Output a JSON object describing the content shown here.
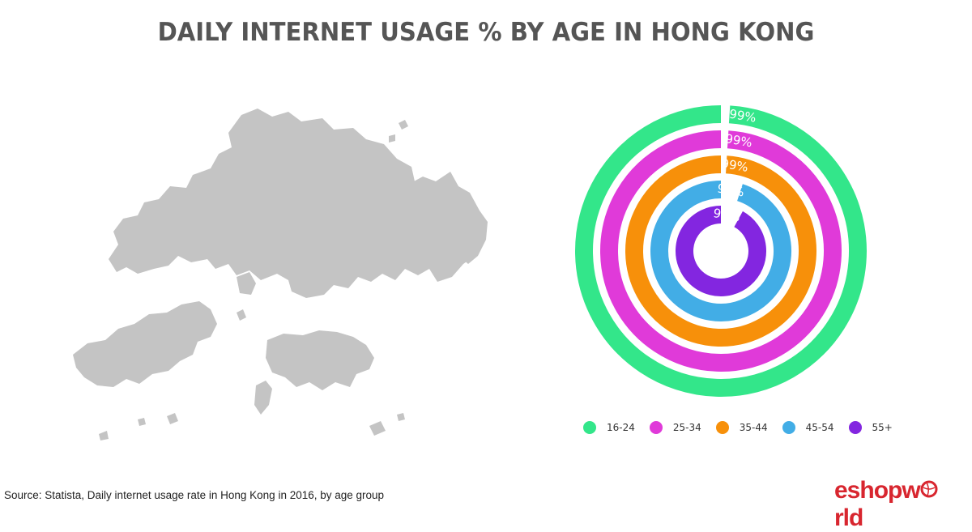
{
  "title": "DAILY INTERNET USAGE % BY AGE IN HONG KONG",
  "source": "Source: Statista, Daily internet usage rate in Hong Kong in 2016, by age group",
  "logo": {
    "text_before": "eshopw",
    "text_after": "rld"
  },
  "colors": {
    "map_fill": "#c4c4c4",
    "title": "#555555",
    "logo": "#d8262f"
  },
  "chart_data": {
    "type": "radial-bar",
    "title": "DAILY INTERNET USAGE % BY AGE IN HONG KONG",
    "max": 100,
    "series": [
      {
        "name": "16-24",
        "value": 99,
        "label": "99%",
        "color": "#33e68a"
      },
      {
        "name": "25-34",
        "value": 99,
        "label": "99%",
        "color": "#e03ad9"
      },
      {
        "name": "35-44",
        "value": 99,
        "label": "99%",
        "color": "#f7900a"
      },
      {
        "name": "45-54",
        "value": 95,
        "label": "95%",
        "color": "#42ade6"
      },
      {
        "name": "55+",
        "value": 92,
        "label": "92%",
        "color": "#8326e0"
      }
    ],
    "legend_position": "bottom"
  }
}
